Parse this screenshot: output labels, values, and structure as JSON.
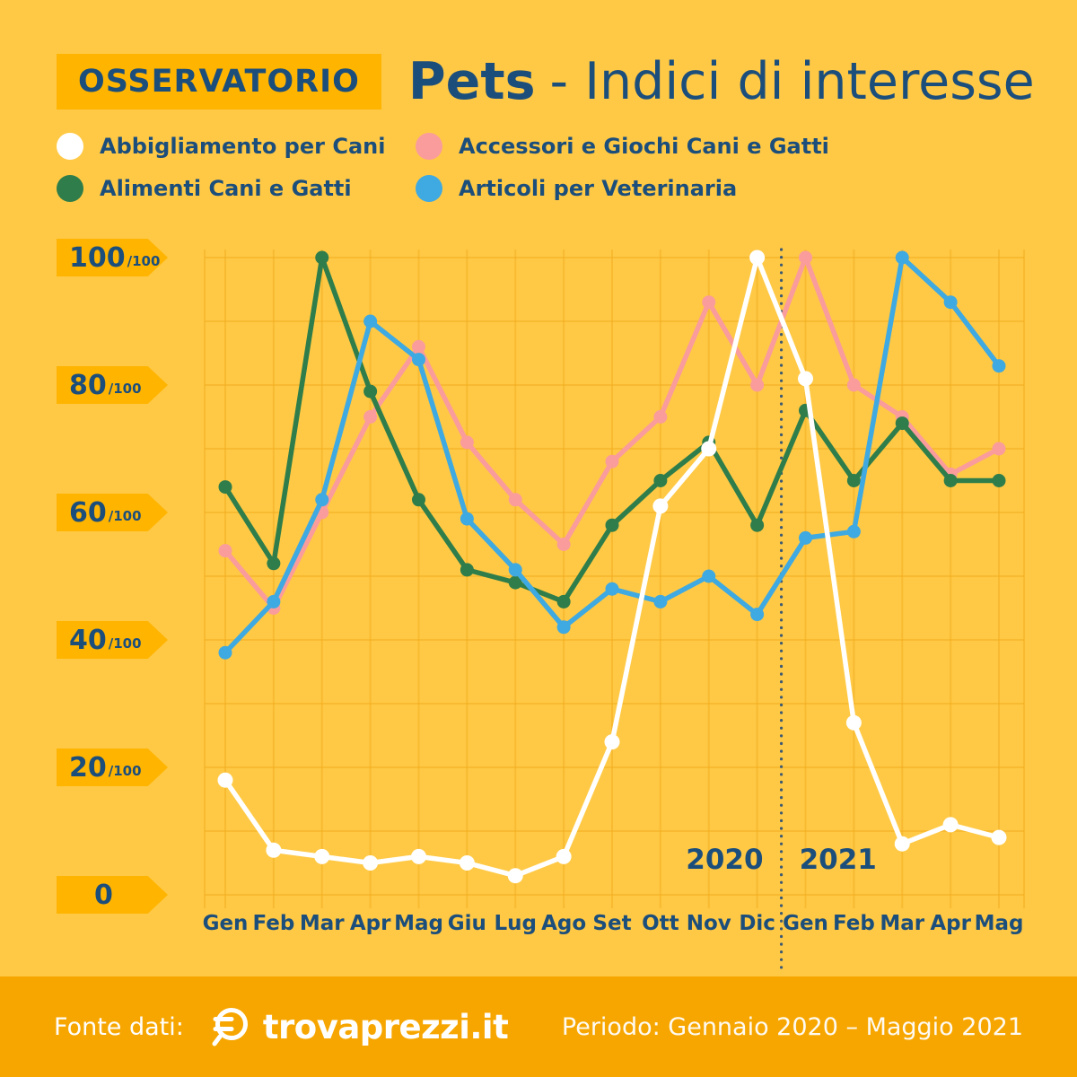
{
  "header": {
    "badge": "OSSERVATORIO",
    "title_bold": "Pets",
    "title_rest": "- Indici di interesse"
  },
  "legend": {
    "items": [
      {
        "label": "Abbigliamento per Cani",
        "color": "#FFFFFF"
      },
      {
        "label": "Alimenti Cani e Gatti",
        "color": "#2E7D4B"
      },
      {
        "label": "Accessori e Giochi Cani e Gatti",
        "color": "#FA9C9C"
      },
      {
        "label": "Articoli per Veterinaria",
        "color": "#3FA9E2"
      }
    ]
  },
  "chart_data": {
    "type": "line",
    "categories": [
      "Gen",
      "Feb",
      "Mar",
      "Apr",
      "Mag",
      "Giu",
      "Lug",
      "Ago",
      "Set",
      "Ott",
      "Nov",
      "Dic",
      "Gen",
      "Feb",
      "Mar",
      "Apr",
      "Mag"
    ],
    "year_split": {
      "left": "2020",
      "right": "2021",
      "after_index": 11
    },
    "ylim": [
      0,
      100
    ],
    "grid": true,
    "legend_position": "top",
    "y_ticks": [
      {
        "value": 100,
        "label": "100",
        "suffix": "/100"
      },
      {
        "value": 80,
        "label": "80",
        "suffix": "/100"
      },
      {
        "value": 60,
        "label": "60",
        "suffix": "/100"
      },
      {
        "value": 40,
        "label": "40",
        "suffix": "/100"
      },
      {
        "value": 20,
        "label": "20",
        "suffix": "/100"
      },
      {
        "value": 0,
        "label": "0",
        "suffix": ""
      }
    ],
    "series": [
      {
        "name": "Accessori e Giochi Cani e Gatti",
        "color": "#FA9C9C",
        "values": [
          54,
          45,
          60,
          75,
          86,
          71,
          62,
          55,
          68,
          75,
          93,
          80,
          100,
          80,
          75,
          66,
          70
        ]
      },
      {
        "name": "Alimenti Cani e Gatti",
        "color": "#2E7D4B",
        "values": [
          64,
          52,
          100,
          79,
          62,
          51,
          49,
          46,
          58,
          65,
          71,
          58,
          76,
          65,
          74,
          65,
          65
        ]
      },
      {
        "name": "Articoli per Veterinaria",
        "color": "#3FA9E2",
        "values": [
          38,
          46,
          62,
          90,
          84,
          59,
          51,
          42,
          48,
          46,
          50,
          44,
          56,
          57,
          100,
          93,
          83
        ]
      },
      {
        "name": "Abbigliamento per Cani",
        "color": "#FFFFFF",
        "values": [
          18,
          7,
          6,
          5,
          6,
          5,
          3,
          6,
          24,
          61,
          70,
          100,
          81,
          27,
          8,
          11,
          9
        ]
      }
    ]
  },
  "footer": {
    "source_label": "Fonte dati:",
    "logo_text": "trovaprezzi.it",
    "period": "Periodo: Gennaio 2020 – Maggio 2021"
  },
  "colors": {
    "background": "#FFC945",
    "badge": "#FFB400",
    "text_blue": "#1C4E7C",
    "footer_bg": "#F7A600",
    "grid": "#F1AC1E",
    "divider": "#3D5A73"
  }
}
